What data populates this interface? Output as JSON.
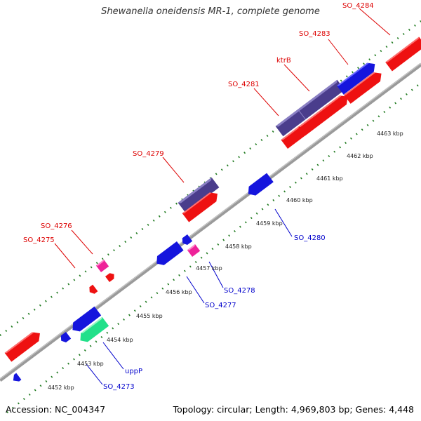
{
  "title": "Shewanella oneidensis MR-1, complete genome",
  "footer": {
    "accession": "Accession: NC_004347",
    "summary": "Topology: circular; Length: 4,969,803 bp; Genes: 4,448"
  },
  "colors": {
    "backbone": "#8a8a8a",
    "tick_dots": "#1f7a1f",
    "forward_label": "#dd0000",
    "reverse_label": "#0000cc",
    "gene_red": "#ee1111",
    "gene_blue": "#1515dd",
    "gene_purple": "#4a3d8c",
    "gene_pink": "#ee2299",
    "gene_green": "#22e08a"
  },
  "scale_labels": [
    "4452 kbp",
    "4453 kbp",
    "4454 kbp",
    "4455 kbp",
    "4456 kbp",
    "4457 kbp",
    "4458 kbp",
    "4459 kbp",
    "4460 kbp",
    "4461 kbp",
    "4462 kbp",
    "4463 kbp"
  ],
  "gene_labels": [
    {
      "id": "so4284",
      "text": "SO_4284",
      "strand": "forward"
    },
    {
      "id": "so4283",
      "text": "SO_4283",
      "strand": "forward"
    },
    {
      "id": "ktrb",
      "text": "ktrB",
      "strand": "forward"
    },
    {
      "id": "so4281",
      "text": "SO_4281",
      "strand": "forward"
    },
    {
      "id": "so4279",
      "text": "SO_4279",
      "strand": "forward"
    },
    {
      "id": "so4276",
      "text": "SO_4276",
      "strand": "forward"
    },
    {
      "id": "so4275",
      "text": "SO_4275",
      "strand": "forward"
    },
    {
      "id": "so4280",
      "text": "SO_4280",
      "strand": "reverse"
    },
    {
      "id": "so4278",
      "text": "SO_4278",
      "strand": "reverse"
    },
    {
      "id": "so4277",
      "text": "SO_4277",
      "strand": "reverse"
    },
    {
      "id": "uppp",
      "text": "uppP",
      "strand": "reverse"
    },
    {
      "id": "so4273",
      "text": "SO_4273",
      "strand": "reverse"
    }
  ]
}
